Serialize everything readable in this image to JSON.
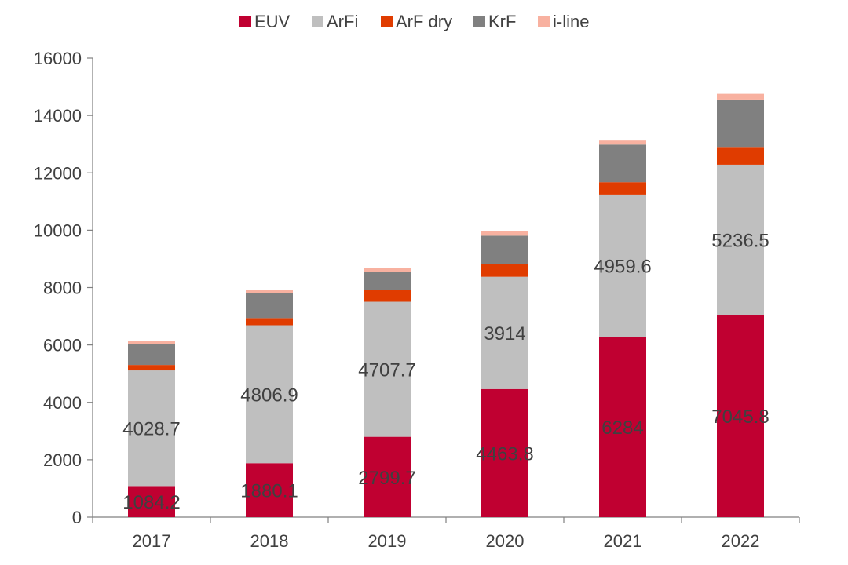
{
  "chart_data": {
    "type": "bar",
    "stacked": true,
    "categories": [
      "2017",
      "2018",
      "2019",
      "2020",
      "2021",
      "2022"
    ],
    "series": [
      {
        "name": "EUV",
        "color": "#C00031",
        "values": [
          1084.2,
          1880.1,
          2799.7,
          4463.8,
          6284,
          7045.8
        ]
      },
      {
        "name": "ArFi",
        "color": "#BFBFBF",
        "values": [
          4028.7,
          4806.9,
          4707.7,
          3914,
          4959.6,
          5236.5
        ]
      },
      {
        "name": "ArF dry",
        "color": "#E03C00",
        "values": [
          190,
          250,
          400,
          430,
          430,
          620
        ]
      },
      {
        "name": "KrF",
        "color": "#808080",
        "values": [
          730,
          880,
          640,
          1000,
          1310,
          1650
        ]
      },
      {
        "name": "i-line",
        "color": "#F8B1A0",
        "values": [
          110,
          100,
          150,
          150,
          140,
          200
        ]
      }
    ],
    "data_labels": {
      "EUV": [
        "1084.2",
        "1880.1",
        "2799.7",
        "4463.8",
        "6284",
        "7045.8"
      ],
      "ArFi": [
        "4028.7",
        "4806.9",
        "4707.7",
        "3914",
        "4959.6",
        "5236.5"
      ]
    },
    "yticks": [
      "0",
      "2000",
      "4000",
      "6000",
      "8000",
      "10000",
      "12000",
      "14000",
      "16000"
    ],
    "ylim": [
      0,
      16000
    ],
    "grid": false,
    "legend_position": "top-center",
    "title": "",
    "xlabel": "",
    "ylabel": ""
  }
}
